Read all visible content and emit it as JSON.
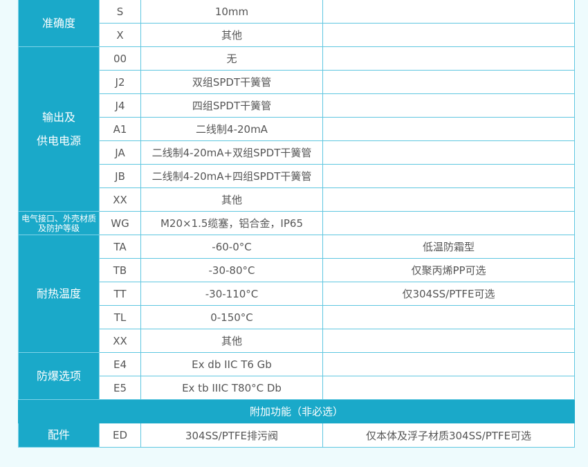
{
  "groups": [
    {
      "label": "准确度",
      "rows": [
        {
          "code": "S",
          "desc": "10mm",
          "note": ""
        },
        {
          "code": "X",
          "desc": "其他",
          "note": ""
        }
      ]
    },
    {
      "label": "输出及\n供电电源",
      "rows": [
        {
          "code": "00",
          "desc": "无",
          "note": ""
        },
        {
          "code": "J2",
          "desc": "双组SPDT干簧管",
          "note": ""
        },
        {
          "code": "J4",
          "desc": "四组SPDT干簧管",
          "note": ""
        },
        {
          "code": "A1",
          "desc": "二线制4-20mA",
          "note": ""
        },
        {
          "code": "JA",
          "desc": "二线制4-20mA+双组SPDT干簧管",
          "note": ""
        },
        {
          "code": "JB",
          "desc": "二线制4-20mA+四组SPDT干簧管",
          "note": ""
        },
        {
          "code": "XX",
          "desc": "其他",
          "note": ""
        }
      ]
    },
    {
      "label": "电气接口、外壳材质及防护等级",
      "small": true,
      "rows": [
        {
          "code": "WG",
          "desc": "M20×1.5缆塞，铝合金，IP65",
          "note": ""
        }
      ]
    },
    {
      "label": "耐热温度",
      "rows": [
        {
          "code": "TA",
          "desc": "-60-0°C",
          "note": "低温防霜型"
        },
        {
          "code": "TB",
          "desc": "-30-80°C",
          "note": "仅聚丙烯PP可选"
        },
        {
          "code": "TT",
          "desc": "-30-110°C",
          "note": "仅304SS/PTFE可选"
        },
        {
          "code": "TL",
          "desc": "0-150°C",
          "note": ""
        },
        {
          "code": "XX",
          "desc": "其他",
          "note": ""
        }
      ]
    },
    {
      "label": "防爆选项",
      "rows": [
        {
          "code": "E4",
          "desc": "Ex db IIC T6 Gb",
          "note": ""
        },
        {
          "code": "E5",
          "desc": "Ex tb IIIC T80°C Db",
          "note": ""
        }
      ]
    }
  ],
  "section_header": "附加功能（非必选）",
  "extra_groups": [
    {
      "label": "配件",
      "rows": [
        {
          "code": "ED",
          "desc": "304SS/PTFE排污阀",
          "note": "仅本体及浮子材质304SS/PTFE可选"
        }
      ]
    }
  ],
  "colors": {
    "accent": "#1aa9c9",
    "border": "#5ec6e0",
    "text": "#555555"
  }
}
